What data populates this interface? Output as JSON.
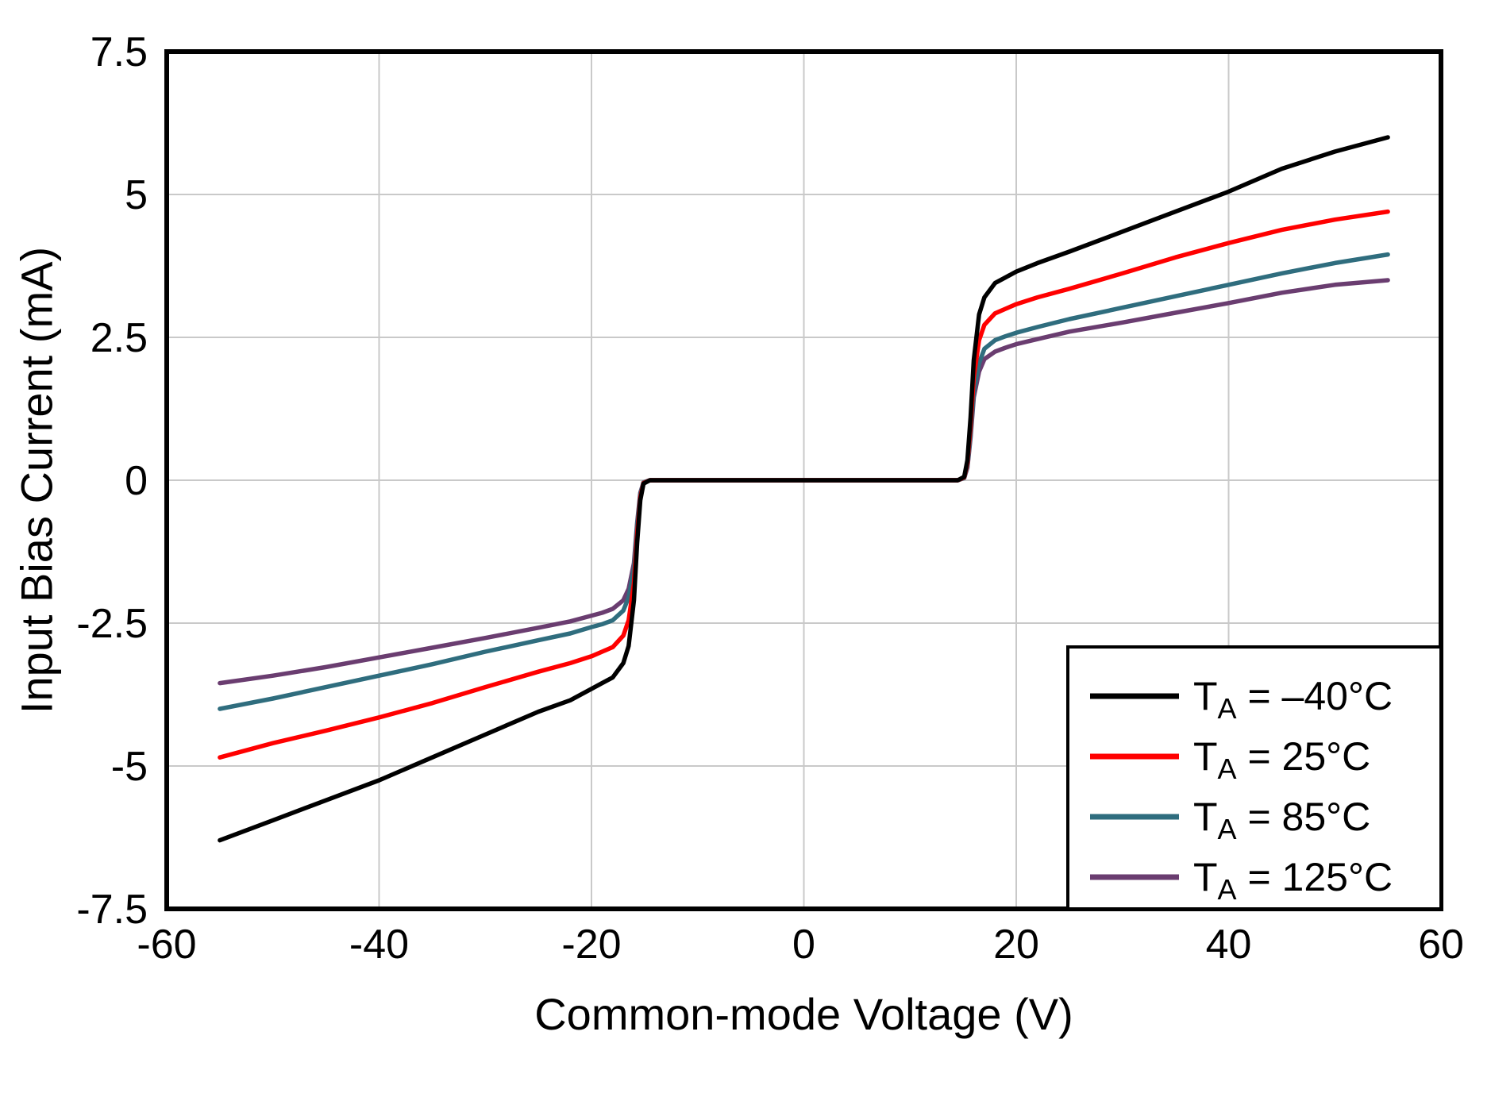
{
  "chart_data": {
    "type": "line",
    "title": "",
    "xlabel": "Common-mode Voltage (V)",
    "ylabel": "Input Bias Current (mA)",
    "xlim": [
      -60,
      60
    ],
    "ylim": [
      -7.5,
      7.5
    ],
    "xticks": [
      -60,
      -40,
      -20,
      0,
      20,
      40,
      60
    ],
    "yticks": [
      -7.5,
      -5,
      -2.5,
      0,
      2.5,
      5,
      7.5
    ],
    "xtick_labels": [
      "-60",
      "-40",
      "-20",
      "0",
      "20",
      "40",
      "60"
    ],
    "ytick_labels": [
      "-7.5",
      "-5",
      "-2.5",
      "0",
      "2.5",
      "5",
      "7.5"
    ],
    "grid": true,
    "legend_position": "bottom-right",
    "series": [
      {
        "name": "TA = –40°C",
        "label_main": "T",
        "label_sub": "A",
        "label_rest": " = –40°C",
        "color": "#000000",
        "points": [
          [
            -55,
            -6.3
          ],
          [
            -50,
            -5.95
          ],
          [
            -45,
            -5.6
          ],
          [
            -40,
            -5.25
          ],
          [
            -35,
            -4.85
          ],
          [
            -30,
            -4.45
          ],
          [
            -25,
            -4.05
          ],
          [
            -22,
            -3.85
          ],
          [
            -20,
            -3.65
          ],
          [
            -19,
            -3.55
          ],
          [
            -18,
            -3.45
          ],
          [
            -17,
            -3.2
          ],
          [
            -16.5,
            -2.9
          ],
          [
            -16,
            -2.1
          ],
          [
            -15.7,
            -1.1
          ],
          [
            -15.4,
            -0.35
          ],
          [
            -15.1,
            -0.06
          ],
          [
            -14.5,
            0
          ],
          [
            0,
            0
          ],
          [
            14.5,
            0
          ],
          [
            15.1,
            0.06
          ],
          [
            15.4,
            0.35
          ],
          [
            15.7,
            1.1
          ],
          [
            16,
            2.1
          ],
          [
            16.5,
            2.9
          ],
          [
            17,
            3.2
          ],
          [
            18,
            3.45
          ],
          [
            19,
            3.55
          ],
          [
            20,
            3.65
          ],
          [
            22,
            3.8
          ],
          [
            25,
            4.0
          ],
          [
            30,
            4.35
          ],
          [
            35,
            4.7
          ],
          [
            40,
            5.05
          ],
          [
            45,
            5.45
          ],
          [
            50,
            5.75
          ],
          [
            55,
            6.0
          ]
        ]
      },
      {
        "name": "TA = 25°C",
        "label_main": "T",
        "label_sub": "A",
        "label_rest": " = 25°C",
        "color": "#ff0000",
        "points": [
          [
            -55,
            -4.85
          ],
          [
            -50,
            -4.6
          ],
          [
            -45,
            -4.38
          ],
          [
            -40,
            -4.15
          ],
          [
            -35,
            -3.9
          ],
          [
            -30,
            -3.62
          ],
          [
            -25,
            -3.35
          ],
          [
            -22,
            -3.2
          ],
          [
            -20,
            -3.08
          ],
          [
            -19,
            -3.0
          ],
          [
            -18,
            -2.92
          ],
          [
            -17,
            -2.72
          ],
          [
            -16.5,
            -2.45
          ],
          [
            -16,
            -1.8
          ],
          [
            -15.7,
            -0.95
          ],
          [
            -15.4,
            -0.3
          ],
          [
            -15.1,
            -0.05
          ],
          [
            -14.5,
            0
          ],
          [
            0,
            0
          ],
          [
            14.5,
            0
          ],
          [
            15.1,
            0.05
          ],
          [
            15.4,
            0.3
          ],
          [
            15.7,
            0.95
          ],
          [
            16,
            1.8
          ],
          [
            16.5,
            2.45
          ],
          [
            17,
            2.72
          ],
          [
            18,
            2.92
          ],
          [
            19,
            3.0
          ],
          [
            20,
            3.08
          ],
          [
            22,
            3.2
          ],
          [
            25,
            3.35
          ],
          [
            30,
            3.62
          ],
          [
            35,
            3.9
          ],
          [
            40,
            4.15
          ],
          [
            45,
            4.38
          ],
          [
            50,
            4.56
          ],
          [
            55,
            4.7
          ]
        ]
      },
      {
        "name": "TA = 85°C",
        "label_main": "T",
        "label_sub": "A",
        "label_rest": " = 85°C",
        "color": "#2f6d7e",
        "points": [
          [
            -55,
            -4.0
          ],
          [
            -50,
            -3.82
          ],
          [
            -45,
            -3.62
          ],
          [
            -40,
            -3.42
          ],
          [
            -35,
            -3.22
          ],
          [
            -30,
            -3.0
          ],
          [
            -25,
            -2.8
          ],
          [
            -22,
            -2.68
          ],
          [
            -20,
            -2.57
          ],
          [
            -19,
            -2.52
          ],
          [
            -18,
            -2.45
          ],
          [
            -17,
            -2.28
          ],
          [
            -16.5,
            -2.05
          ],
          [
            -16,
            -1.55
          ],
          [
            -15.7,
            -0.8
          ],
          [
            -15.4,
            -0.25
          ],
          [
            -15.1,
            -0.04
          ],
          [
            -14.5,
            0
          ],
          [
            0,
            0
          ],
          [
            14.5,
            0
          ],
          [
            15.1,
            0.04
          ],
          [
            15.4,
            0.25
          ],
          [
            15.7,
            0.8
          ],
          [
            16,
            1.55
          ],
          [
            16.5,
            2.05
          ],
          [
            17,
            2.3
          ],
          [
            18,
            2.45
          ],
          [
            19,
            2.52
          ],
          [
            20,
            2.58
          ],
          [
            22,
            2.68
          ],
          [
            25,
            2.82
          ],
          [
            30,
            3.02
          ],
          [
            35,
            3.22
          ],
          [
            40,
            3.42
          ],
          [
            45,
            3.62
          ],
          [
            50,
            3.8
          ],
          [
            55,
            3.95
          ]
        ]
      },
      {
        "name": "TA = 125°C",
        "label_main": "T",
        "label_sub": "A",
        "label_rest": " = 125°C",
        "color": "#6a3d70",
        "points": [
          [
            -55,
            -3.55
          ],
          [
            -50,
            -3.42
          ],
          [
            -45,
            -3.27
          ],
          [
            -40,
            -3.1
          ],
          [
            -35,
            -2.93
          ],
          [
            -30,
            -2.76
          ],
          [
            -25,
            -2.58
          ],
          [
            -22,
            -2.47
          ],
          [
            -20,
            -2.37
          ],
          [
            -19,
            -2.32
          ],
          [
            -18,
            -2.25
          ],
          [
            -17,
            -2.1
          ],
          [
            -16.5,
            -1.9
          ],
          [
            -16,
            -1.45
          ],
          [
            -15.7,
            -0.75
          ],
          [
            -15.4,
            -0.22
          ],
          [
            -15.1,
            -0.04
          ],
          [
            -14.5,
            0
          ],
          [
            0,
            0
          ],
          [
            14.5,
            0
          ],
          [
            15.1,
            0.04
          ],
          [
            15.4,
            0.22
          ],
          [
            15.7,
            0.75
          ],
          [
            16,
            1.45
          ],
          [
            16.5,
            1.9
          ],
          [
            17,
            2.12
          ],
          [
            18,
            2.25
          ],
          [
            19,
            2.32
          ],
          [
            20,
            2.38
          ],
          [
            22,
            2.47
          ],
          [
            25,
            2.6
          ],
          [
            30,
            2.76
          ],
          [
            35,
            2.93
          ],
          [
            40,
            3.1
          ],
          [
            45,
            3.28
          ],
          [
            50,
            3.42
          ],
          [
            55,
            3.5
          ]
        ]
      }
    ]
  },
  "colors": {
    "background": "#ffffff",
    "plot_border": "#000000",
    "grid": "#c9c9c9",
    "legend_border": "#000000",
    "legend_background": "#ffffff",
    "text": "#000000"
  }
}
